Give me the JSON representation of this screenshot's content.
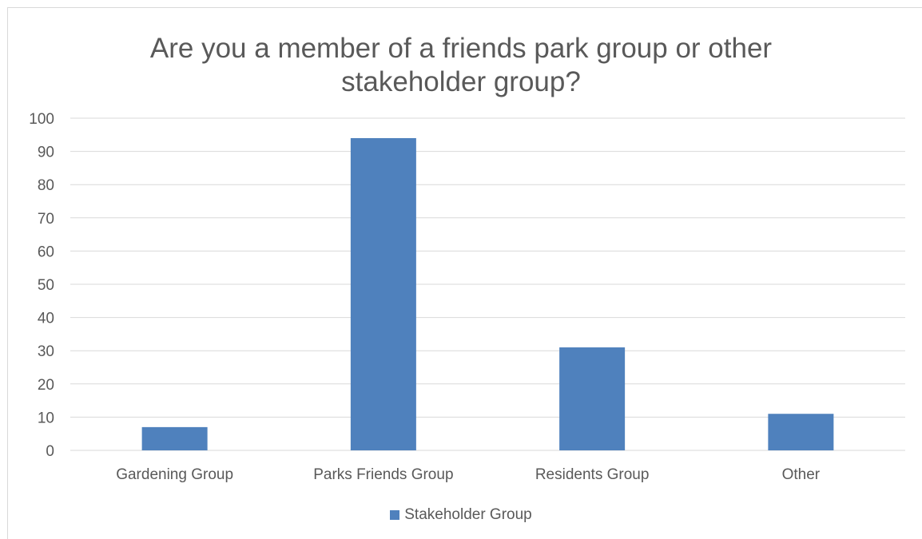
{
  "chart_data": {
    "type": "bar",
    "title_lines": [
      "Are you a member of a friends park group or other",
      "stakeholder group?"
    ],
    "categories": [
      "Gardening Group",
      "Parks Friends Group",
      "Residents Group",
      "Other"
    ],
    "series": [
      {
        "name": "Stakeholder Group",
        "values": [
          7,
          94,
          31,
          11
        ],
        "color": "#4f81bd"
      }
    ],
    "ylim": [
      0,
      100
    ],
    "yticks": [
      0,
      10,
      20,
      30,
      40,
      50,
      60,
      70,
      80,
      90,
      100
    ],
    "grid": true,
    "legend_position": "bottom"
  }
}
